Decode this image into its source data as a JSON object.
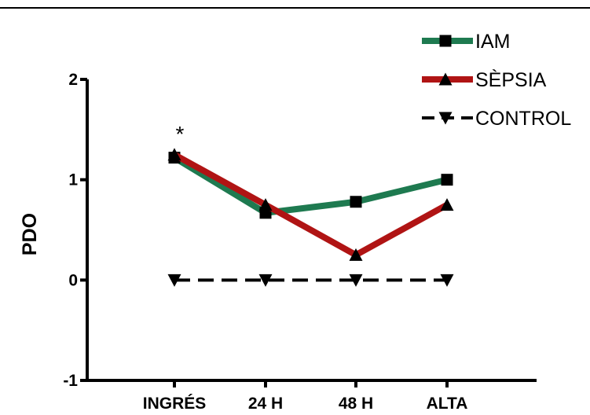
{
  "chart_data": {
    "type": "line",
    "title": "",
    "xlabel": "",
    "ylabel": "PDO",
    "categories": [
      "INGRÉS",
      "24 H",
      "48 H",
      "ALTA"
    ],
    "ylim": [
      -1,
      2
    ],
    "yticks": [
      -1,
      0,
      1,
      2
    ],
    "grid": false,
    "legend": "top-right",
    "series": [
      {
        "name": "IAM",
        "values": [
          1.22,
          0.67,
          0.78,
          1.0
        ],
        "color": "#1e7a50",
        "marker": "square",
        "dashed": false
      },
      {
        "name": "SÈPSIA",
        "values": [
          1.25,
          0.75,
          0.25,
          0.75
        ],
        "color": "#b01414",
        "marker": "triangle-up",
        "dashed": false
      },
      {
        "name": "CONTROL",
        "values": [
          0,
          0,
          0,
          0
        ],
        "color": "#000000",
        "marker": "triangle-down",
        "dashed": true
      }
    ],
    "annotations": [
      {
        "text": "*",
        "category": "INGRÉS"
      }
    ]
  }
}
